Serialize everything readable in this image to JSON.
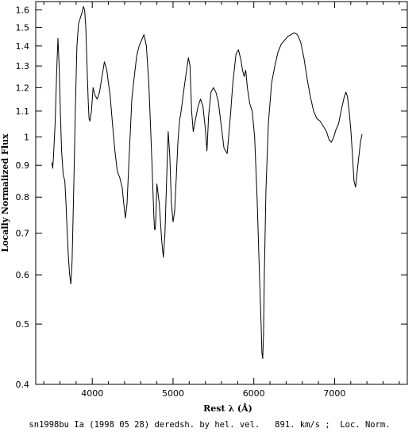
{
  "chart_data": {
    "type": "line",
    "xlabel": "Rest λ (Å)",
    "ylabel": "Locally Normalized Flux",
    "caption": "sn1998bu Ia (1998 05 28) deredsh. by hel. vel.   891. km/s ;  Loc. Norm.",
    "xlim": [
      3300,
      7900
    ],
    "ylim": [
      0.4,
      1.65
    ],
    "y_scale": "log",
    "grid": false,
    "x_ticks": [
      4000,
      5000,
      6000,
      7000
    ],
    "x_tick_labels": [
      "4000",
      "5000",
      "6000",
      "7000"
    ],
    "y_ticks": [
      0.4,
      0.5,
      0.6,
      0.7,
      0.8,
      0.9,
      1.0,
      1.1,
      1.2,
      1.3,
      1.4,
      1.5,
      1.6
    ],
    "y_tick_labels": [
      "0.4",
      "0.5",
      "0.6",
      "0.7",
      "0.8",
      "0.9",
      "1",
      "1.1",
      "1.2",
      "1.3",
      "1.4",
      "1.5",
      "1.6"
    ],
    "series": [
      {
        "color": "#000000",
        "x": [
          3500,
          3510,
          3520,
          3540,
          3560,
          3575,
          3590,
          3605,
          3620,
          3640,
          3660,
          3675,
          3690,
          3705,
          3720,
          3735,
          3750,
          3770,
          3790,
          3810,
          3830,
          3850,
          3870,
          3890,
          3905,
          3920,
          3935,
          3950,
          3960,
          3970,
          3990,
          4010,
          4030,
          4060,
          4090,
          4120,
          4150,
          4180,
          4200,
          4220,
          4250,
          4280,
          4310,
          4340,
          4370,
          4390,
          4410,
          4430,
          4460,
          4490,
          4520,
          4550,
          4580,
          4610,
          4640,
          4670,
          4700,
          4720,
          4740,
          4760,
          4770,
          4780,
          4790,
          4800,
          4830,
          4860,
          4880,
          4900,
          4920,
          4940,
          4960,
          4980,
          5000,
          5020,
          5040,
          5060,
          5080,
          5100,
          5130,
          5160,
          5190,
          5210,
          5230,
          5250,
          5280,
          5310,
          5340,
          5370,
          5400,
          5420,
          5440,
          5470,
          5500,
          5530,
          5560,
          5590,
          5630,
          5670,
          5710,
          5740,
          5780,
          5810,
          5840,
          5860,
          5880,
          5900,
          5920,
          5950,
          5980,
          6010,
          6040,
          6070,
          6090,
          6100,
          6110,
          6120,
          6130,
          6150,
          6180,
          6220,
          6260,
          6300,
          6340,
          6380,
          6420,
          6460,
          6500,
          6540,
          6580,
          6620,
          6660,
          6700,
          6740,
          6780,
          6820,
          6860,
          6900,
          6930,
          6960,
          6990,
          7020,
          7050,
          7080,
          7100,
          7120,
          7140,
          7160,
          7180,
          7200,
          7220,
          7240,
          7260,
          7280,
          7300,
          7320,
          7340
        ],
        "y": [
          0.91,
          0.89,
          0.93,
          1.05,
          1.28,
          1.44,
          1.3,
          1.1,
          0.95,
          0.87,
          0.85,
          0.78,
          0.7,
          0.64,
          0.6,
          0.58,
          0.63,
          0.82,
          1.1,
          1.4,
          1.52,
          1.55,
          1.58,
          1.62,
          1.6,
          1.5,
          1.3,
          1.14,
          1.07,
          1.06,
          1.1,
          1.2,
          1.17,
          1.15,
          1.18,
          1.25,
          1.32,
          1.28,
          1.22,
          1.17,
          1.05,
          0.95,
          0.88,
          0.86,
          0.83,
          0.78,
          0.74,
          0.78,
          0.95,
          1.15,
          1.25,
          1.35,
          1.4,
          1.43,
          1.46,
          1.4,
          1.22,
          1.05,
          0.9,
          0.76,
          0.71,
          0.71,
          0.76,
          0.84,
          0.78,
          0.68,
          0.64,
          0.7,
          0.85,
          1.02,
          0.93,
          0.78,
          0.73,
          0.76,
          0.86,
          0.98,
          1.06,
          1.1,
          1.18,
          1.26,
          1.34,
          1.3,
          1.1,
          1.02,
          1.07,
          1.12,
          1.15,
          1.12,
          1.03,
          0.95,
          1.08,
          1.18,
          1.2,
          1.18,
          1.14,
          1.06,
          0.96,
          0.94,
          1.08,
          1.22,
          1.36,
          1.38,
          1.33,
          1.28,
          1.25,
          1.28,
          1.2,
          1.13,
          1.1,
          1.0,
          0.8,
          0.6,
          0.5,
          0.45,
          0.44,
          0.48,
          0.6,
          0.82,
          1.05,
          1.22,
          1.3,
          1.37,
          1.41,
          1.43,
          1.45,
          1.46,
          1.47,
          1.46,
          1.42,
          1.34,
          1.24,
          1.16,
          1.1,
          1.07,
          1.06,
          1.04,
          1.02,
          0.99,
          0.98,
          1.0,
          1.03,
          1.05,
          1.1,
          1.13,
          1.16,
          1.18,
          1.16,
          1.1,
          1.03,
          0.94,
          0.85,
          0.83,
          0.88,
          0.93,
          0.98,
          1.01
        ]
      }
    ]
  }
}
